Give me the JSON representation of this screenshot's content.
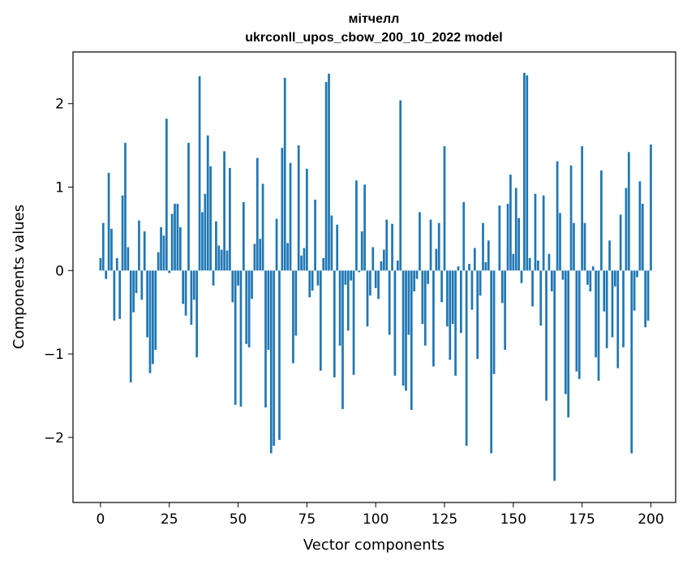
{
  "chart_data": {
    "type": "bar",
    "title_line1": "мітчелл",
    "title_line2": "ukrconll_upos_cbow_200_10_2022 model",
    "xlabel": "Vector components",
    "ylabel": "Components values",
    "xlim": [
      -10,
      209
    ],
    "ylim": [
      -2.78,
      2.62
    ],
    "xticks": [
      0,
      25,
      50,
      75,
      100,
      125,
      150,
      175,
      200
    ],
    "xtick_labels": [
      "0",
      "25",
      "50",
      "75",
      "100",
      "125",
      "150",
      "175",
      "200"
    ],
    "yticks": [
      -2,
      -1,
      0,
      1,
      2
    ],
    "ytick_labels": [
      "−2",
      "−1",
      "0",
      "1",
      "2"
    ],
    "grid": false,
    "color": "#1f77b4",
    "x_start": 0,
    "values": [
      0.15,
      0.57,
      -0.1,
      1.17,
      0.5,
      -0.6,
      0.15,
      -0.58,
      0.9,
      1.53,
      0.28,
      -1.34,
      -0.5,
      -0.27,
      0.6,
      -0.35,
      0.47,
      -0.8,
      -1.23,
      -1.12,
      -0.95,
      0.22,
      0.52,
      0.42,
      1.82,
      -0.03,
      0.68,
      0.8,
      0.8,
      0.52,
      -0.4,
      -0.54,
      1.53,
      -0.65,
      -0.35,
      -1.04,
      2.33,
      0.7,
      0.92,
      1.62,
      1.25,
      -0.18,
      0.59,
      0.3,
      0.25,
      1.43,
      0.24,
      1.23,
      -0.38,
      -1.61,
      -0.18,
      -1.63,
      0.82,
      -0.88,
      -0.92,
      -0.34,
      0.32,
      1.35,
      0.38,
      1.04,
      -1.64,
      -0.95,
      -2.19,
      -2.1,
      0.62,
      -2.03,
      1.47,
      2.31,
      0.33,
      1.29,
      -1.11,
      -0.78,
      1.5,
      0.18,
      0.27,
      1.22,
      -0.32,
      -0.24,
      0.85,
      -0.18,
      -1.2,
      0.15,
      2.26,
      2.36,
      0.66,
      -1.28,
      0.55,
      -0.9,
      -1.66,
      -0.17,
      -0.72,
      -0.12,
      -1.25,
      1.08,
      -0.02,
      0.47,
      1.03,
      -0.67,
      -0.3,
      0.28,
      -0.21,
      -0.34,
      0.11,
      0.25,
      0.61,
      -0.77,
      0.56,
      -1.26,
      0.12,
      2.04,
      -1.38,
      -1.44,
      -0.77,
      -1.67,
      -0.25,
      -0.1,
      0.7,
      -0.64,
      -0.9,
      -0.16,
      0.61,
      -1.15,
      0.26,
      0.57,
      -0.38,
      1.49,
      -0.67,
      -1.07,
      -0.64,
      -1.26,
      0.05,
      -0.75,
      0.82,
      -2.1,
      0.08,
      -0.47,
      0.27,
      -1.06,
      -0.3,
      0.57,
      0.1,
      0.36,
      -2.19,
      -1.24,
      0.0,
      0.78,
      -0.39,
      -0.95,
      0.8,
      1.15,
      0.2,
      0.99,
      0.63,
      -0.15,
      2.37,
      2.34,
      0.15,
      -0.43,
      0.92,
      0.12,
      -0.66,
      0.9,
      -1.56,
      0.2,
      -0.25,
      -2.52,
      1.31,
      0.69,
      -0.11,
      -1.48,
      -1.76,
      1.26,
      0.57,
      -1.21,
      -1.3,
      1.49,
      0.57,
      -0.17,
      -0.25,
      0.05,
      -1.04,
      -1.32,
      1.2,
      -0.49,
      -0.93,
      0.36,
      -0.8,
      -0.19,
      -1.17,
      0.67,
      -0.92,
      0.99,
      1.42,
      -2.19,
      -0.48,
      -0.08,
      1.07,
      0.8,
      -0.68,
      -0.6,
      1.51
    ]
  }
}
